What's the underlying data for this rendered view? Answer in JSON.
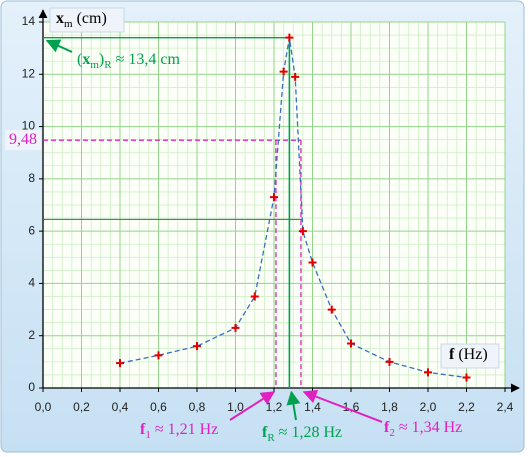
{
  "chart_data": {
    "type": "line",
    "y_label": [
      {
        "text": "x",
        "style": "bold"
      },
      {
        "text": "m",
        "style": "sub"
      },
      {
        "text": " (cm)",
        "style": "normal"
      }
    ],
    "x_label": [
      {
        "text": "f",
        "style": "bold"
      },
      {
        "text": " (Hz)",
        "style": "normal"
      }
    ],
    "x": [
      0.4,
      0.6,
      0.8,
      1.0,
      1.1,
      1.2,
      1.25,
      1.28,
      1.31,
      1.35,
      1.4,
      1.5,
      1.6,
      1.8,
      2.0,
      2.2
    ],
    "series": [
      {
        "color": "#3a6fc0",
        "marker_color": "#e00000",
        "values": [
          0.95,
          1.25,
          1.6,
          2.3,
          3.5,
          7.3,
          12.1,
          13.4,
          11.9,
          6.0,
          4.8,
          3.0,
          1.7,
          1.0,
          0.6,
          0.4
        ]
      }
    ],
    "xlim": [
      0,
      2.4
    ],
    "ylim": [
      0,
      14
    ],
    "xticks": [
      {
        "value": 0,
        "label": "0,0"
      },
      {
        "value": 0.2,
        "label": "0,2"
      },
      {
        "value": 0.4,
        "label": "0,4"
      },
      {
        "value": 0.6,
        "label": "0,6"
      },
      {
        "value": 0.8,
        "label": "0,8"
      },
      {
        "value": 1.0,
        "label": "1,0"
      },
      {
        "value": 1.2,
        "label": "1,2"
      },
      {
        "value": 1.4,
        "label": "1,4"
      },
      {
        "value": 1.6,
        "label": "1,6"
      },
      {
        "value": 1.8,
        "label": "1,8"
      },
      {
        "value": 2.0,
        "label": "2,0"
      },
      {
        "value": 2.2,
        "label": "2,2"
      },
      {
        "value": 2.4,
        "label": "2,4"
      }
    ],
    "yticks": [
      0,
      2,
      4,
      6,
      8,
      10,
      12,
      14
    ],
    "grid": true,
    "minor_grid_divisions": 4,
    "resonance": {
      "f": 1.28,
      "x_m": 13.4,
      "color": "#00a050",
      "amp_label": [
        {
          "text": "(",
          "style": "normal"
        },
        {
          "text": "x",
          "style": "bold"
        },
        {
          "text": "m",
          "style": "sub"
        },
        {
          "text": ")",
          "style": "normal"
        },
        {
          "text": "R",
          "style": "sub"
        },
        {
          "text": " ≈ 13,4 cm",
          "style": "normal"
        }
      ],
      "f_label": [
        {
          "text": "f",
          "style": "bold"
        },
        {
          "text": "R",
          "style": "sub"
        },
        {
          "text": " ≈ 1,28 Hz",
          "style": "normal"
        }
      ]
    },
    "bandwidth": {
      "level": {
        "value": 9.48,
        "label": "9,48"
      },
      "f1": 1.21,
      "f2": 1.34,
      "color": "#e020c0",
      "f1_label": [
        {
          "text": "f",
          "style": "bold"
        },
        {
          "text": "1",
          "style": "sub"
        },
        {
          "text": " ≈ 1,21 Hz",
          "style": "normal"
        }
      ],
      "f2_label": [
        {
          "text": "f",
          "style": "bold"
        },
        {
          "text": "2",
          "style": "sub"
        },
        {
          "text": " ≈ 1,34 Hz",
          "style": "normal"
        }
      ]
    },
    "guide_line": {
      "y": 6.45,
      "x": 1.35,
      "color": "#3f6a60"
    }
  }
}
